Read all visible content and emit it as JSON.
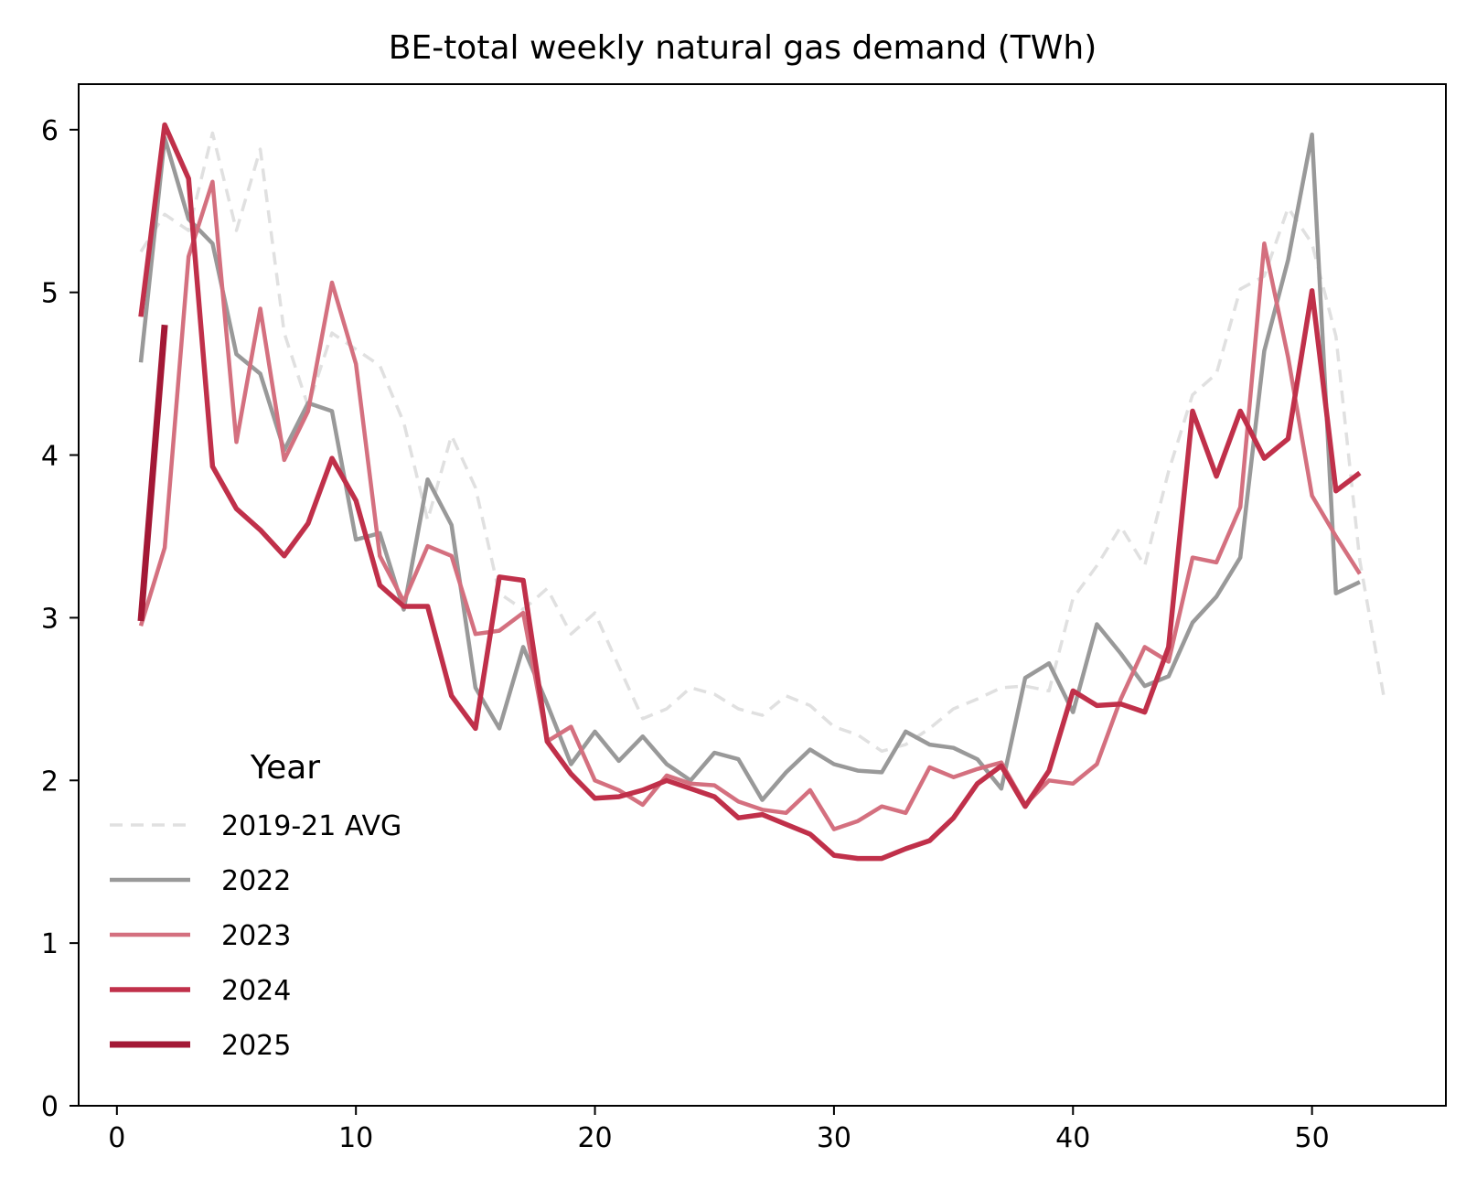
{
  "chart_data": {
    "type": "line",
    "title": "BE-total weekly natural gas demand (TWh)",
    "xlabel": "",
    "ylabel": "",
    "xlim": [
      -1.6,
      55.6
    ],
    "ylim": [
      0,
      6.28
    ],
    "xticks": [
      0,
      10,
      20,
      30,
      40,
      50
    ],
    "yticks": [
      0,
      1,
      2,
      3,
      4,
      5,
      6
    ],
    "grid": false,
    "legend": {
      "title": "Year",
      "placement": "lower-left"
    },
    "series": [
      {
        "name": "2019-21 AVG",
        "color": "#e0e0e0",
        "style": "dashed",
        "x": [
          1,
          2,
          3,
          4,
          5,
          6,
          7,
          8,
          9,
          10,
          11,
          12,
          13,
          14,
          15,
          16,
          17,
          18,
          19,
          20,
          21,
          22,
          23,
          24,
          25,
          26,
          27,
          28,
          29,
          30,
          31,
          32,
          33,
          34,
          35,
          36,
          37,
          38,
          39,
          40,
          41,
          42,
          43,
          44,
          45,
          46,
          47,
          48,
          49,
          50,
          51,
          52,
          53
        ],
        "values": [
          5.25,
          5.48,
          5.38,
          5.98,
          5.38,
          5.88,
          4.75,
          4.3,
          4.75,
          4.65,
          4.55,
          4.2,
          3.6,
          4.12,
          3.8,
          3.15,
          3.05,
          3.18,
          2.9,
          3.03,
          2.7,
          2.38,
          2.44,
          2.57,
          2.53,
          2.44,
          2.4,
          2.52,
          2.46,
          2.33,
          2.28,
          2.18,
          2.22,
          2.32,
          2.44,
          2.5,
          2.57,
          2.58,
          2.55,
          3.12,
          3.32,
          3.56,
          3.32,
          3.9,
          4.37,
          4.5,
          5.02,
          5.1,
          5.52,
          5.3,
          4.73,
          3.35,
          2.52
        ]
      },
      {
        "name": "2022",
        "color": "#999999",
        "style": "solid",
        "x": [
          1,
          2,
          3,
          4,
          5,
          6,
          7,
          8,
          9,
          10,
          11,
          12,
          13,
          14,
          15,
          16,
          17,
          18,
          19,
          20,
          21,
          22,
          23,
          24,
          25,
          26,
          27,
          28,
          29,
          30,
          31,
          32,
          33,
          34,
          35,
          36,
          37,
          38,
          39,
          40,
          41,
          42,
          43,
          44,
          45,
          46,
          47,
          48,
          49,
          50,
          51,
          52
        ],
        "values": [
          4.57,
          5.95,
          5.45,
          5.3,
          4.62,
          4.5,
          4.03,
          4.32,
          4.27,
          3.48,
          3.52,
          3.05,
          3.85,
          3.57,
          2.57,
          2.32,
          2.82,
          2.47,
          2.1,
          2.3,
          2.12,
          2.27,
          2.1,
          2.0,
          2.17,
          2.13,
          1.88,
          2.05,
          2.19,
          2.1,
          2.06,
          2.05,
          2.3,
          2.22,
          2.2,
          2.13,
          1.95,
          2.63,
          2.72,
          2.42,
          2.96,
          2.78,
          2.58,
          2.64,
          2.97,
          3.13,
          3.37,
          4.64,
          5.2,
          5.97,
          3.15,
          3.22
        ]
      },
      {
        "name": "2023",
        "color": "#d4707f",
        "style": "solid",
        "x": [
          1,
          2,
          3,
          4,
          5,
          6,
          7,
          8,
          9,
          10,
          11,
          12,
          13,
          14,
          15,
          16,
          17,
          18,
          19,
          20,
          21,
          22,
          23,
          24,
          25,
          26,
          27,
          28,
          29,
          30,
          31,
          32,
          33,
          34,
          35,
          36,
          37,
          38,
          39,
          40,
          41,
          42,
          43,
          44,
          45,
          46,
          47,
          48,
          49,
          50,
          51,
          52
        ],
        "values": [
          2.95,
          3.43,
          5.22,
          5.68,
          4.08,
          4.9,
          3.97,
          4.27,
          5.06,
          4.56,
          3.38,
          3.1,
          3.44,
          3.38,
          2.9,
          2.92,
          3.03,
          2.24,
          2.33,
          2.0,
          1.94,
          1.85,
          2.03,
          1.98,
          1.97,
          1.87,
          1.82,
          1.8,
          1.94,
          1.7,
          1.75,
          1.84,
          1.8,
          2.08,
          2.02,
          2.07,
          2.11,
          1.85,
          2.0,
          1.98,
          2.1,
          2.5,
          2.82,
          2.73,
          3.37,
          3.34,
          3.68,
          5.3,
          4.6,
          3.75,
          3.5,
          3.27
        ]
      },
      {
        "name": "2024",
        "color": "#c0304a",
        "style": "solid",
        "x": [
          1,
          2,
          3,
          4,
          5,
          6,
          7,
          8,
          9,
          10,
          11,
          12,
          13,
          14,
          15,
          16,
          17,
          18,
          19,
          20,
          21,
          22,
          23,
          24,
          25,
          26,
          27,
          28,
          29,
          30,
          31,
          32,
          33,
          34,
          35,
          36,
          37,
          38,
          39,
          40,
          41,
          42,
          43,
          44,
          45,
          46,
          47,
          48,
          49,
          50,
          51,
          52
        ],
        "values": [
          4.85,
          6.03,
          5.7,
          3.93,
          3.67,
          3.54,
          3.38,
          3.58,
          3.98,
          3.72,
          3.2,
          3.07,
          3.07,
          2.52,
          2.32,
          3.25,
          3.23,
          2.24,
          2.04,
          1.89,
          1.9,
          1.94,
          2.0,
          1.95,
          1.9,
          1.77,
          1.79,
          1.73,
          1.67,
          1.54,
          1.52,
          1.52,
          1.58,
          1.63,
          1.77,
          1.98,
          2.09,
          1.84,
          2.06,
          2.55,
          2.46,
          2.47,
          2.42,
          2.82,
          4.27,
          3.87,
          4.27,
          3.98,
          4.1,
          5.01,
          3.78,
          3.89
        ]
      },
      {
        "name": "2025",
        "color": "#a31835",
        "style": "solid",
        "x": [
          1,
          2
        ],
        "values": [
          2.98,
          4.8
        ]
      }
    ]
  }
}
